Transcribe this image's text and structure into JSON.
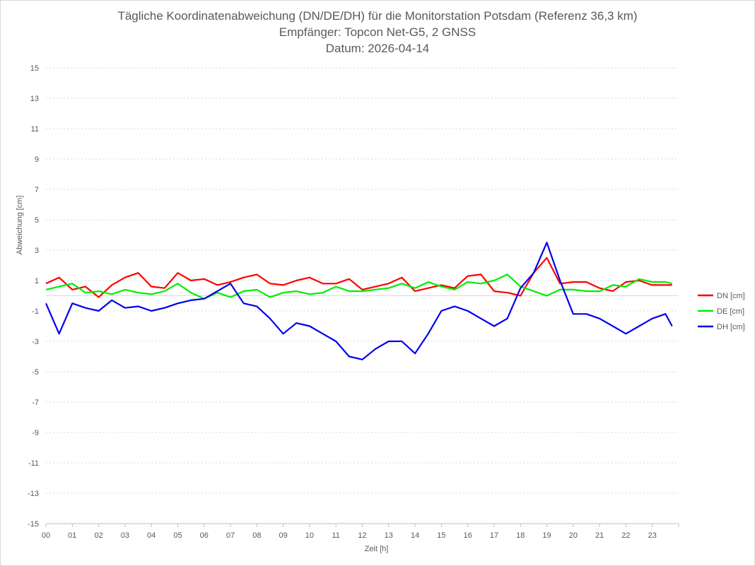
{
  "chart_data": {
    "type": "line",
    "title": [
      "Tägliche Koordinatenabweichung (DN/DE/DH) für die Monitorstation Potsdam (Referenz 36,3 km)",
      "Empfänger: Topcon Net-G5, 2 GNSS",
      "Datum: 2026-04-14"
    ],
    "xlabel": "Zeit [h]",
    "ylabel": "Abweichung [cm]",
    "xlim": [
      0,
      24
    ],
    "ylim": [
      -15,
      15
    ],
    "x_ticks": [
      "00",
      "01",
      "02",
      "03",
      "04",
      "05",
      "06",
      "07",
      "08",
      "09",
      "10",
      "11",
      "12",
      "13",
      "14",
      "15",
      "16",
      "17",
      "18",
      "19",
      "20",
      "21",
      "22",
      "23"
    ],
    "y_ticks": [
      "15",
      "13",
      "11",
      "9",
      "7",
      "5",
      "3",
      "1",
      "-1",
      "-3",
      "-5",
      "-7",
      "-9",
      "-11",
      "-13",
      "-15"
    ],
    "grid": "horizontal dotted",
    "legend_position": "right",
    "x_hours": [
      0,
      0.5,
      1,
      1.5,
      2,
      2.5,
      3,
      3.5,
      4,
      4.5,
      5,
      5.5,
      6,
      6.5,
      7,
      7.5,
      8,
      8.5,
      9,
      9.5,
      10,
      10.5,
      11,
      11.5,
      12,
      12.5,
      13,
      13.5,
      14,
      14.5,
      15,
      15.5,
      16,
      16.5,
      17,
      17.5,
      18,
      18.5,
      19,
      19.5,
      20,
      20.5,
      21,
      21.5,
      22,
      22.5,
      23,
      23.5,
      23.75
    ],
    "series": [
      {
        "name": "DN [cm]",
        "color": "#ff0000",
        "values": [
          0.8,
          1.2,
          0.4,
          0.6,
          -0.1,
          0.7,
          1.2,
          1.5,
          0.6,
          0.5,
          1.5,
          1.0,
          1.1,
          0.7,
          0.9,
          1.2,
          1.4,
          0.8,
          0.7,
          1.0,
          1.2,
          0.8,
          0.8,
          1.1,
          0.4,
          0.6,
          0.8,
          1.2,
          0.3,
          0.5,
          0.7,
          0.5,
          1.3,
          1.4,
          0.3,
          0.2,
          0.0,
          1.5,
          2.5,
          0.8,
          0.9,
          0.9,
          0.5,
          0.3,
          0.9,
          1.0,
          0.7,
          0.7,
          0.7
        ]
      },
      {
        "name": "DE [cm]",
        "color": "#00ee00",
        "values": [
          0.4,
          0.6,
          0.8,
          0.2,
          0.3,
          0.1,
          0.4,
          0.2,
          0.1,
          0.3,
          0.8,
          0.2,
          -0.2,
          0.2,
          -0.1,
          0.3,
          0.4,
          -0.1,
          0.2,
          0.3,
          0.1,
          0.2,
          0.6,
          0.3,
          0.3,
          0.4,
          0.5,
          0.8,
          0.5,
          0.9,
          0.6,
          0.4,
          0.9,
          0.8,
          1.0,
          1.4,
          0.6,
          0.3,
          0.0,
          0.4,
          0.4,
          0.3,
          0.3,
          0.7,
          0.6,
          1.1,
          0.9,
          0.9,
          0.8
        ]
      },
      {
        "name": "DH [cm]",
        "color": "#0000ee",
        "values": [
          -0.5,
          -2.5,
          -0.5,
          -0.8,
          -1.0,
          -0.3,
          -0.8,
          -0.7,
          -1.0,
          -0.8,
          -0.5,
          -0.3,
          -0.2,
          0.3,
          0.8,
          -0.5,
          -0.7,
          -1.5,
          -2.5,
          -1.8,
          -2.0,
          -2.5,
          -3.0,
          -4.0,
          -4.2,
          -3.5,
          -3.0,
          -3.0,
          -3.8,
          -2.5,
          -1.0,
          -0.7,
          -1.0,
          -1.5,
          -2.0,
          -1.5,
          0.5,
          1.5,
          3.5,
          1.0,
          -1.2,
          -1.2,
          -1.5,
          -2.0,
          -2.5,
          -2.0,
          -1.5,
          -1.2,
          -2.0
        ]
      }
    ]
  }
}
